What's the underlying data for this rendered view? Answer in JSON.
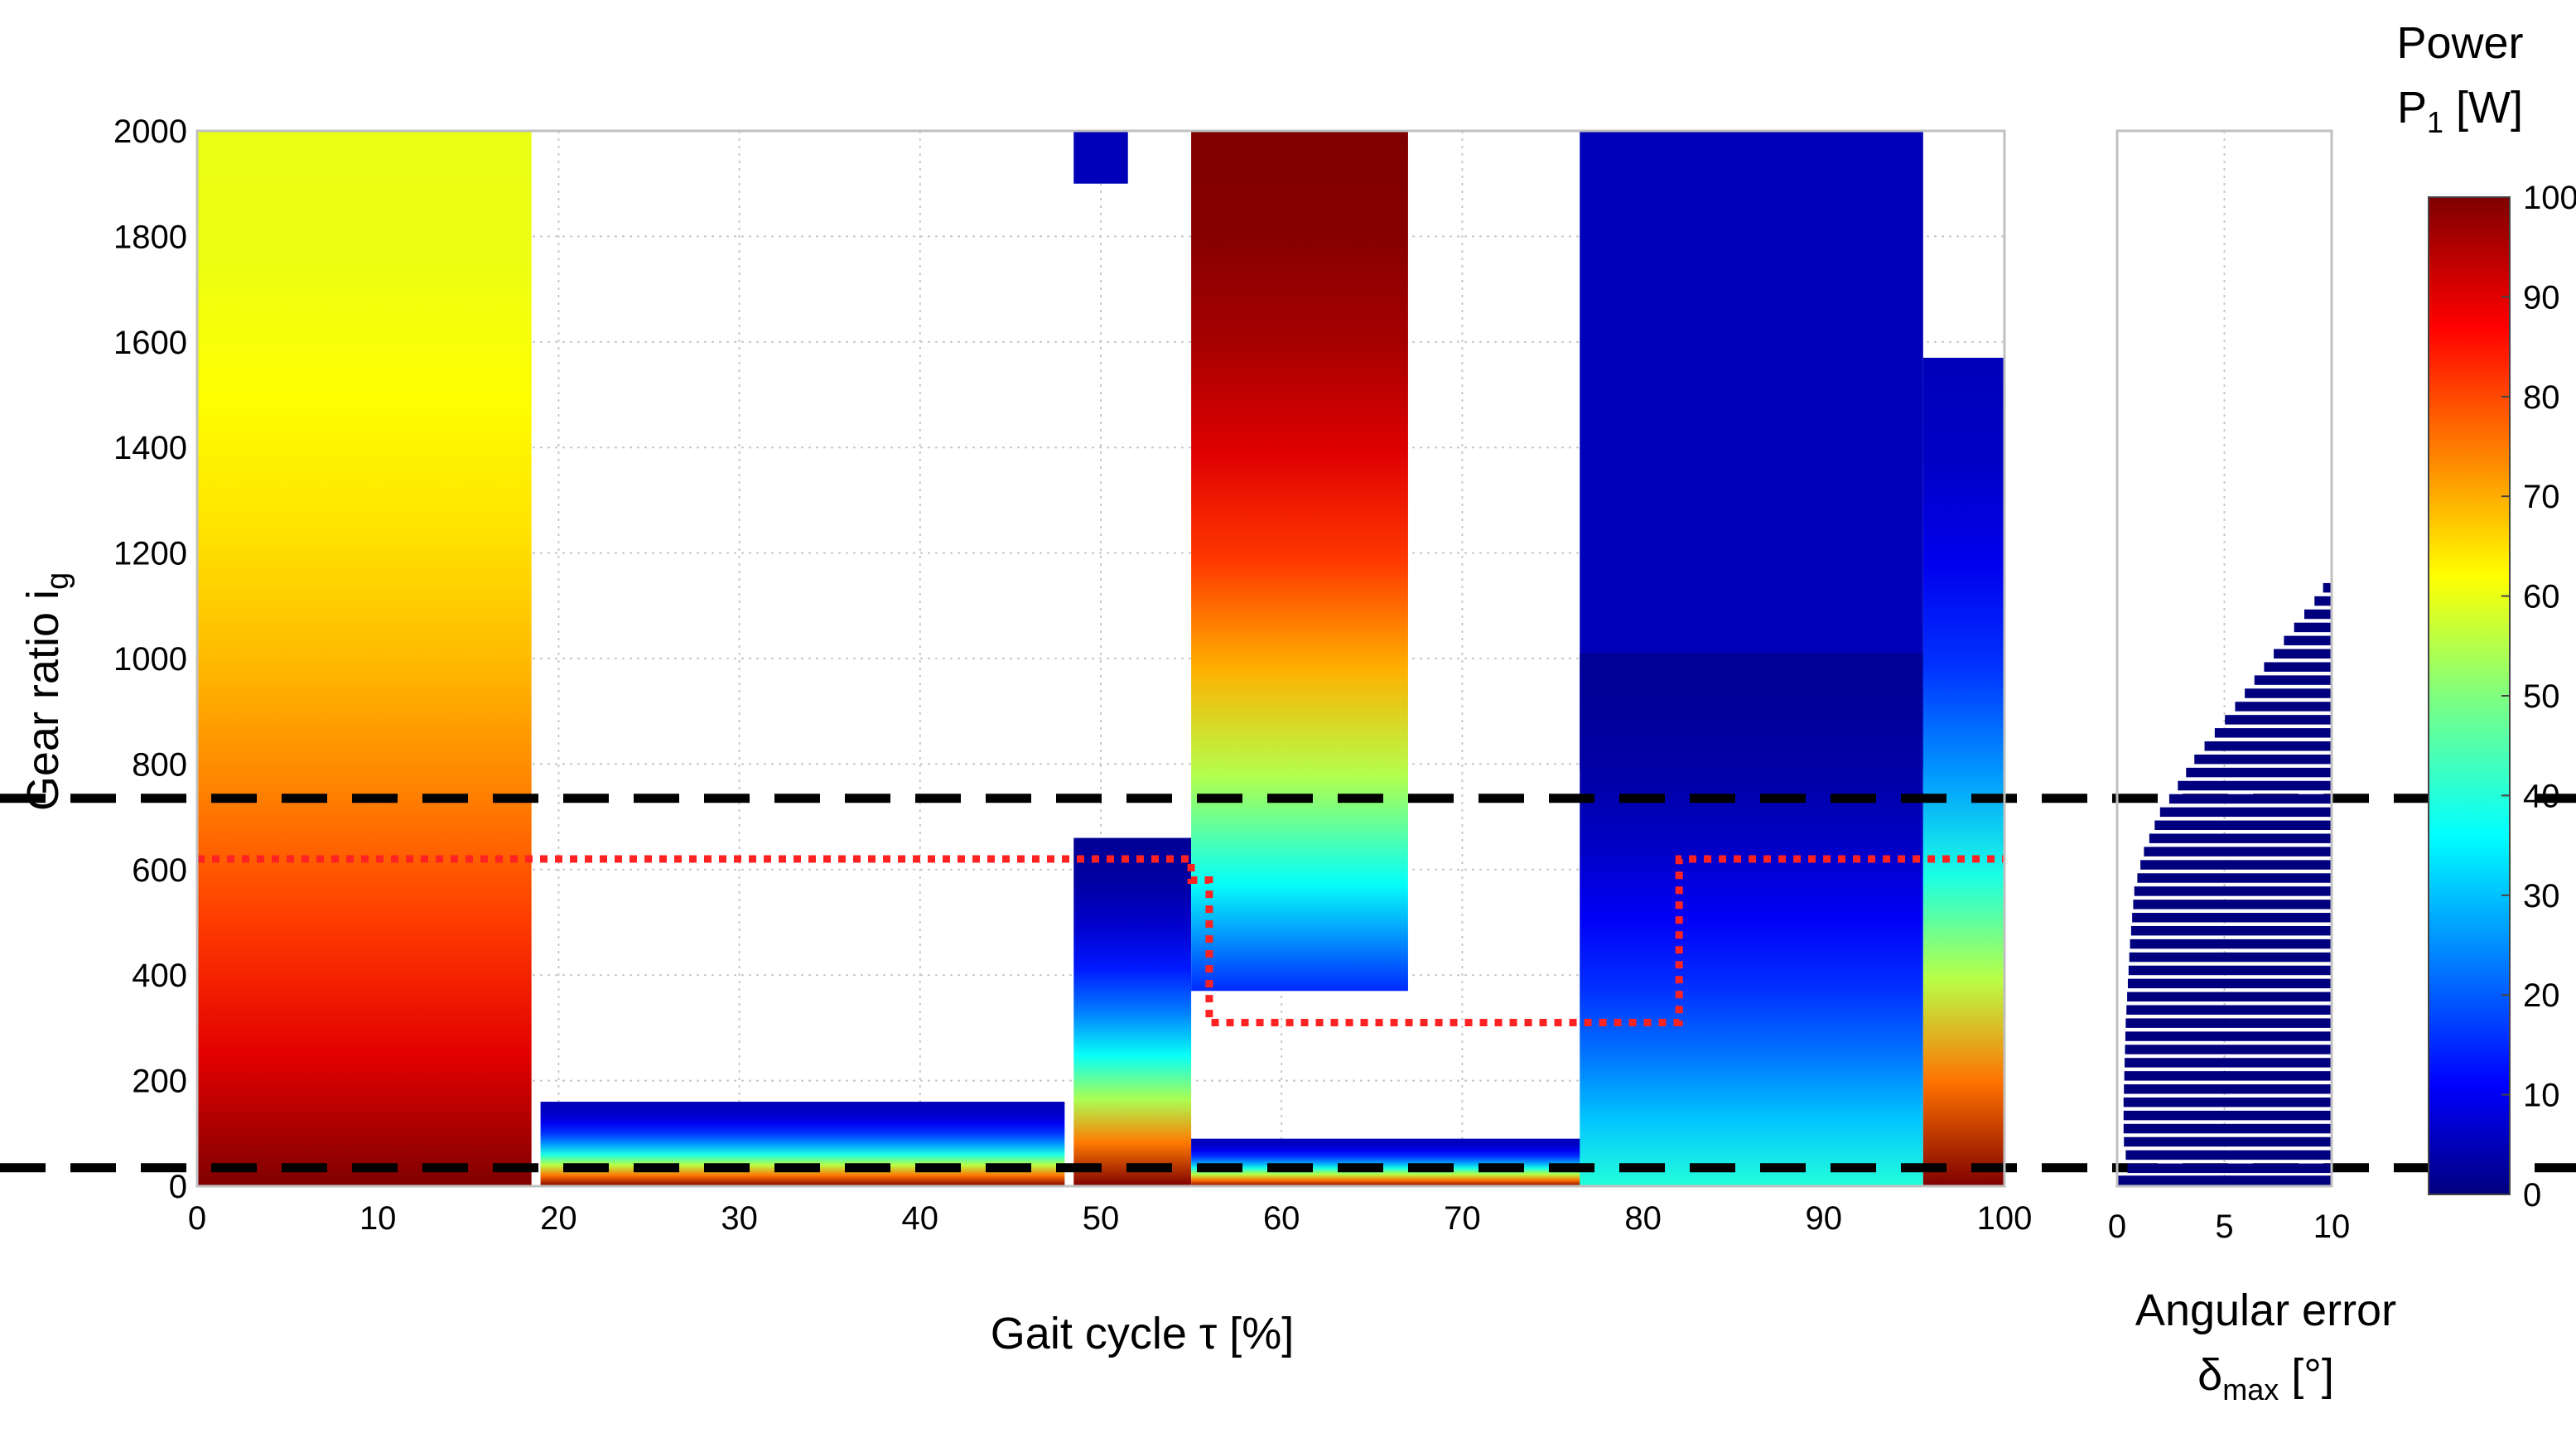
{
  "chart_data": [
    {
      "type": "heatmap",
      "title": "",
      "xlabel": "Gait cycle τ  [%]",
      "ylabel": "Gear ratio  i",
      "ylabel_sub": "g",
      "xlim": [
        0,
        100
      ],
      "ylim": [
        0,
        2000
      ],
      "x_ticks": [
        0,
        10,
        20,
        30,
        40,
        50,
        60,
        70,
        80,
        90,
        100
      ],
      "y_ticks": [
        0,
        200,
        400,
        600,
        800,
        1000,
        1200,
        1400,
        1600,
        1800,
        2000
      ],
      "grid": true,
      "colormap": "jet",
      "color_range": [
        0,
        100
      ],
      "feasible_regions": [
        {
          "x": [
            0,
            18.5
          ],
          "y": [
            0,
            2000
          ],
          "p_at_top": 60,
          "p_at_bottom": 100
        },
        {
          "x": [
            19,
            48
          ],
          "y": [
            0,
            160
          ],
          "p_at_top": 5,
          "p_at_bottom": 100
        },
        {
          "x": [
            48.5,
            55
          ],
          "y": [
            0,
            660
          ],
          "p_at_top": 2,
          "p_at_bottom": 100
        },
        {
          "x": [
            55,
            67
          ],
          "y": [
            370,
            2000
          ],
          "p_at_top": 100,
          "p_at_bottom": 15
        },
        {
          "x": [
            55,
            78
          ],
          "y": [
            0,
            90
          ],
          "p_at_top": 5,
          "p_at_bottom": 100
        },
        {
          "x": [
            48.5,
            51.5
          ],
          "y": [
            1900,
            2000
          ],
          "p_at_top": 5,
          "p_at_bottom": 5
        },
        {
          "x": [
            76.5,
            95.5
          ],
          "y": [
            790,
            2000
          ],
          "p_at_top": 5,
          "p_at_bottom": 5
        },
        {
          "x": [
            76.5,
            95.5
          ],
          "y": [
            0,
            1010
          ],
          "p_at_top": 2,
          "p_at_bottom": 40
        },
        {
          "x": [
            95.5,
            100
          ],
          "y": [
            0,
            1570
          ],
          "p_at_top": 5,
          "p_at_bottom": 100
        }
      ],
      "reference_lines": {
        "black_dashed_y": [
          735,
          35
        ],
        "red_dotted_path": {
          "x": [
            0,
            55,
            55,
            56,
            56,
            82,
            82,
            100
          ],
          "y": [
            620,
            620,
            580,
            580,
            310,
            310,
            620,
            620
          ]
        }
      }
    },
    {
      "type": "bar",
      "orientation": "horizontal",
      "title": "",
      "xlabel": "Angular error",
      "xlabel_line2": "δ",
      "xlabel_line2_sub": "max",
      "xlabel_line2_suffix": " [°]",
      "xlim": [
        0,
        10
      ],
      "x_ticks": [
        0,
        5,
        10
      ],
      "ylim": [
        0,
        2000
      ],
      "bar_color": "#00007F",
      "boundary": {
        "y": [
          20,
          50,
          80,
          150,
          300,
          450,
          550,
          620,
          700,
          735,
          800,
          900,
          1000,
          1100,
          1150,
          1160,
          2000
        ],
        "x": [
          0.5,
          0.4,
          0.3,
          0.3,
          0.4,
          0.6,
          0.8,
          1.2,
          2.0,
          2.6,
          3.6,
          5.5,
          7.3,
          9.2,
          10,
          10,
          10
        ]
      },
      "bottom_block": {
        "y": [
          0,
          20
        ],
        "x": [
          0,
          10
        ]
      }
    },
    {
      "type": "colorbar",
      "title_line1": "Power",
      "title_line2": "P",
      "title_line2_sub": "1",
      "title_line2_suffix": " [W]",
      "range": [
        0,
        100
      ],
      "ticks": [
        0,
        10,
        20,
        30,
        40,
        50,
        60,
        70,
        80,
        90,
        100
      ],
      "colormap": "jet"
    }
  ],
  "colors": {
    "dashed_line": "#000000",
    "dotted_line": "#FF2222",
    "grid": "#C8C8C8",
    "frame": "#C0C0C0"
  }
}
